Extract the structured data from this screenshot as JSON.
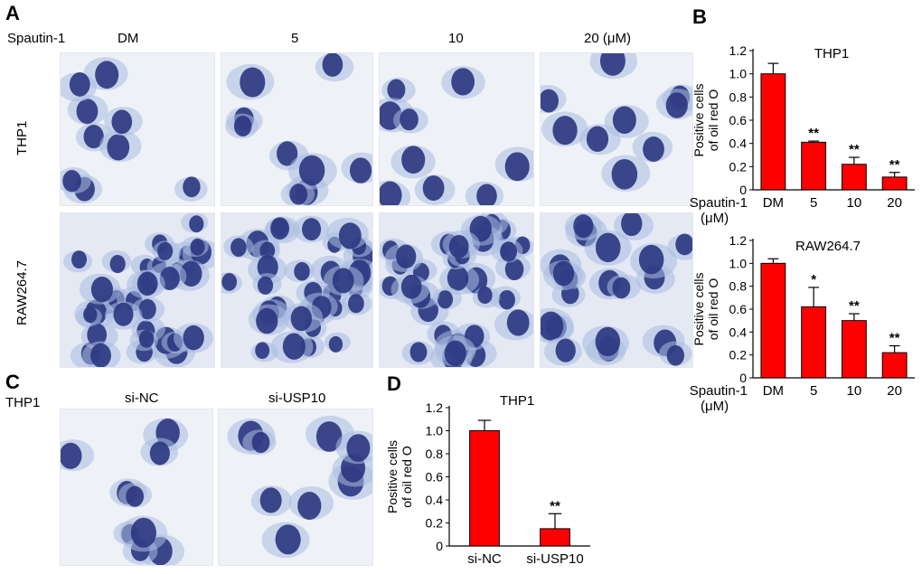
{
  "panelA": {
    "letter": "A",
    "treatment_label": "Spautin-1",
    "doses": [
      "DM",
      "5",
      "10",
      "20 (μM)"
    ],
    "rows": [
      "THP1",
      "RAW264.7"
    ]
  },
  "panelC": {
    "letter": "C",
    "cell_line": "THP1",
    "conditions": [
      "si-NC",
      "si-USP10"
    ]
  },
  "panelB": {
    "letter": "B"
  },
  "panelD": {
    "letter": "D"
  },
  "colors": {
    "bar": "#ff0000",
    "stain_nucleus": "#2a3580",
    "stain_cytoplasm": "#a9bbe0"
  },
  "chart_data": [
    {
      "id": "B-THP1",
      "type": "bar",
      "title": "THP1",
      "ylabel": "Positive cells of oil red O",
      "xlabel_group": "Spautin-1",
      "xlabel_unit": "(μM)",
      "categories": [
        "DM",
        "5",
        "10",
        "20"
      ],
      "values": [
        1.0,
        0.41,
        0.22,
        0.11
      ],
      "errors": [
        0.09,
        0.01,
        0.06,
        0.04
      ],
      "significance": [
        "",
        "**",
        "**",
        "**"
      ],
      "ylim": [
        0,
        1.2
      ],
      "yticks": [
        "0",
        "0.2",
        "0.4",
        "0.6",
        "0.8",
        "1.0",
        "1.2"
      ]
    },
    {
      "id": "B-RAW",
      "type": "bar",
      "title": "RAW264.7",
      "ylabel": "Positive cells of oil red O",
      "xlabel_group": "Spautin-1",
      "xlabel_unit": "(μM)",
      "categories": [
        "DM",
        "5",
        "10",
        "20"
      ],
      "values": [
        1.0,
        0.62,
        0.5,
        0.22
      ],
      "errors": [
        0.04,
        0.17,
        0.06,
        0.06
      ],
      "significance": [
        "",
        "*",
        "**",
        "**"
      ],
      "ylim": [
        0,
        1.2
      ],
      "yticks": [
        "0",
        "0.2",
        "0.4",
        "0.6",
        "0.8",
        "1.0",
        "1.2"
      ]
    },
    {
      "id": "D-THP1",
      "type": "bar",
      "title": "THP1",
      "ylabel": "Positive cells of oil red O",
      "categories": [
        "si-NC",
        "si-USP10"
      ],
      "values": [
        1.0,
        0.15
      ],
      "errors": [
        0.09,
        0.13
      ],
      "significance": [
        "",
        "**"
      ],
      "ylim": [
        0,
        1.2
      ],
      "yticks": [
        "0",
        "0.2",
        "0.4",
        "0.6",
        "0.8",
        "1.0",
        "1.2"
      ]
    }
  ]
}
